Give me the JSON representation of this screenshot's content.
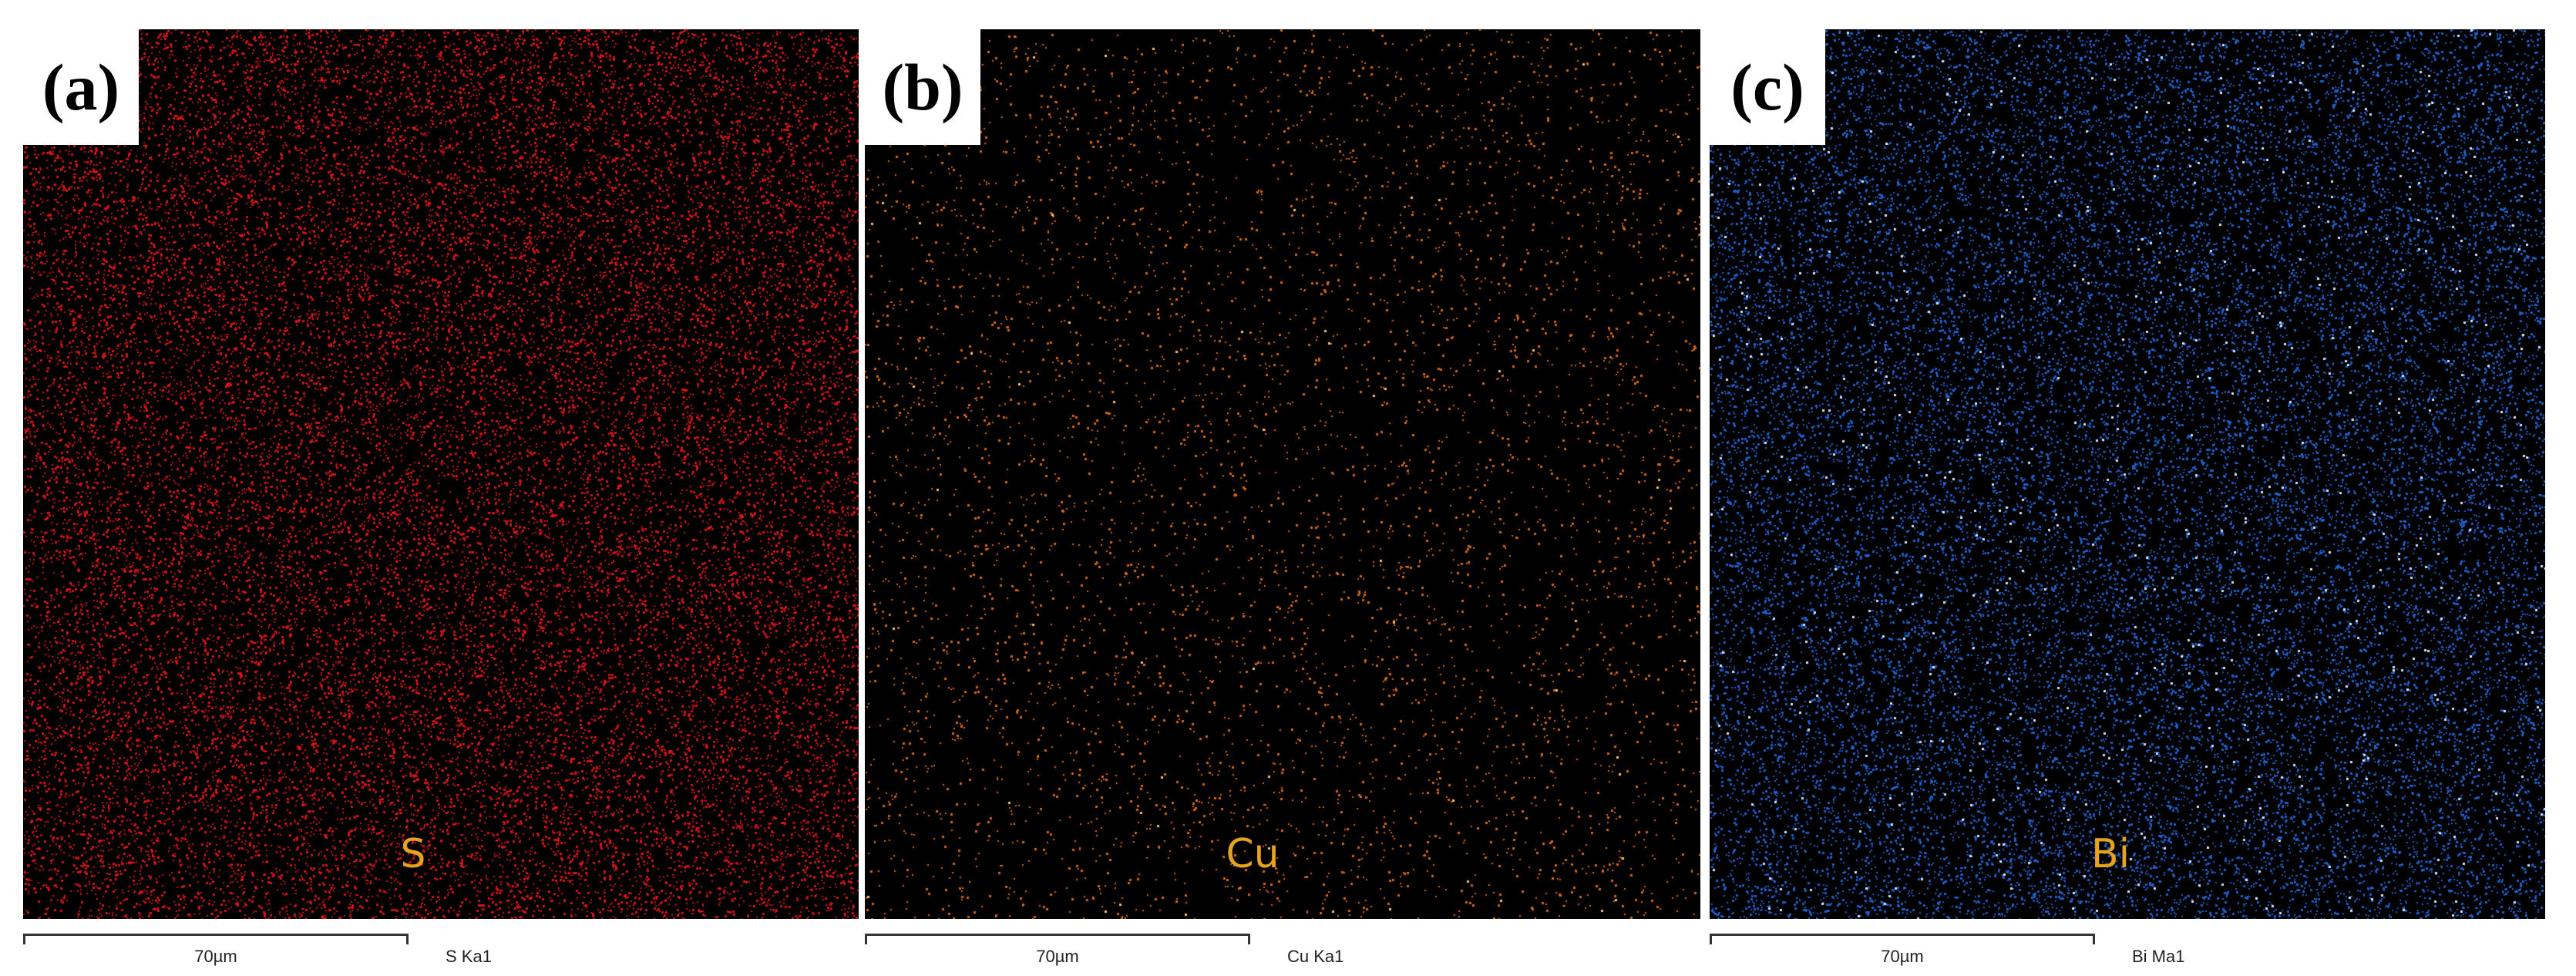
{
  "figure": {
    "panels": [
      {
        "id": "a",
        "label": "(a)",
        "element": "S",
        "line": "S Ka1",
        "scale": "70µm",
        "dot_color": "#d21414",
        "dot_count": 26000,
        "highlight_color": "#ff5a4a",
        "highlight_count": 0
      },
      {
        "id": "b",
        "label": "(b)",
        "element": "Cu",
        "line": "Cu Ka1",
        "scale": "70µm",
        "dot_color": "#d8650f",
        "dot_count": 5200,
        "highlight_color": "#ffc070",
        "highlight_count": 60
      },
      {
        "id": "c",
        "label": "(c)",
        "element": "Bi",
        "line": "Bi Ma1",
        "scale": "70µm",
        "dot_color": "#1e5fc8",
        "dot_count": 24000,
        "highlight_color": "#d8e4ff",
        "highlight_count": 700
      }
    ],
    "element_label_color": "#e6a41e"
  }
}
